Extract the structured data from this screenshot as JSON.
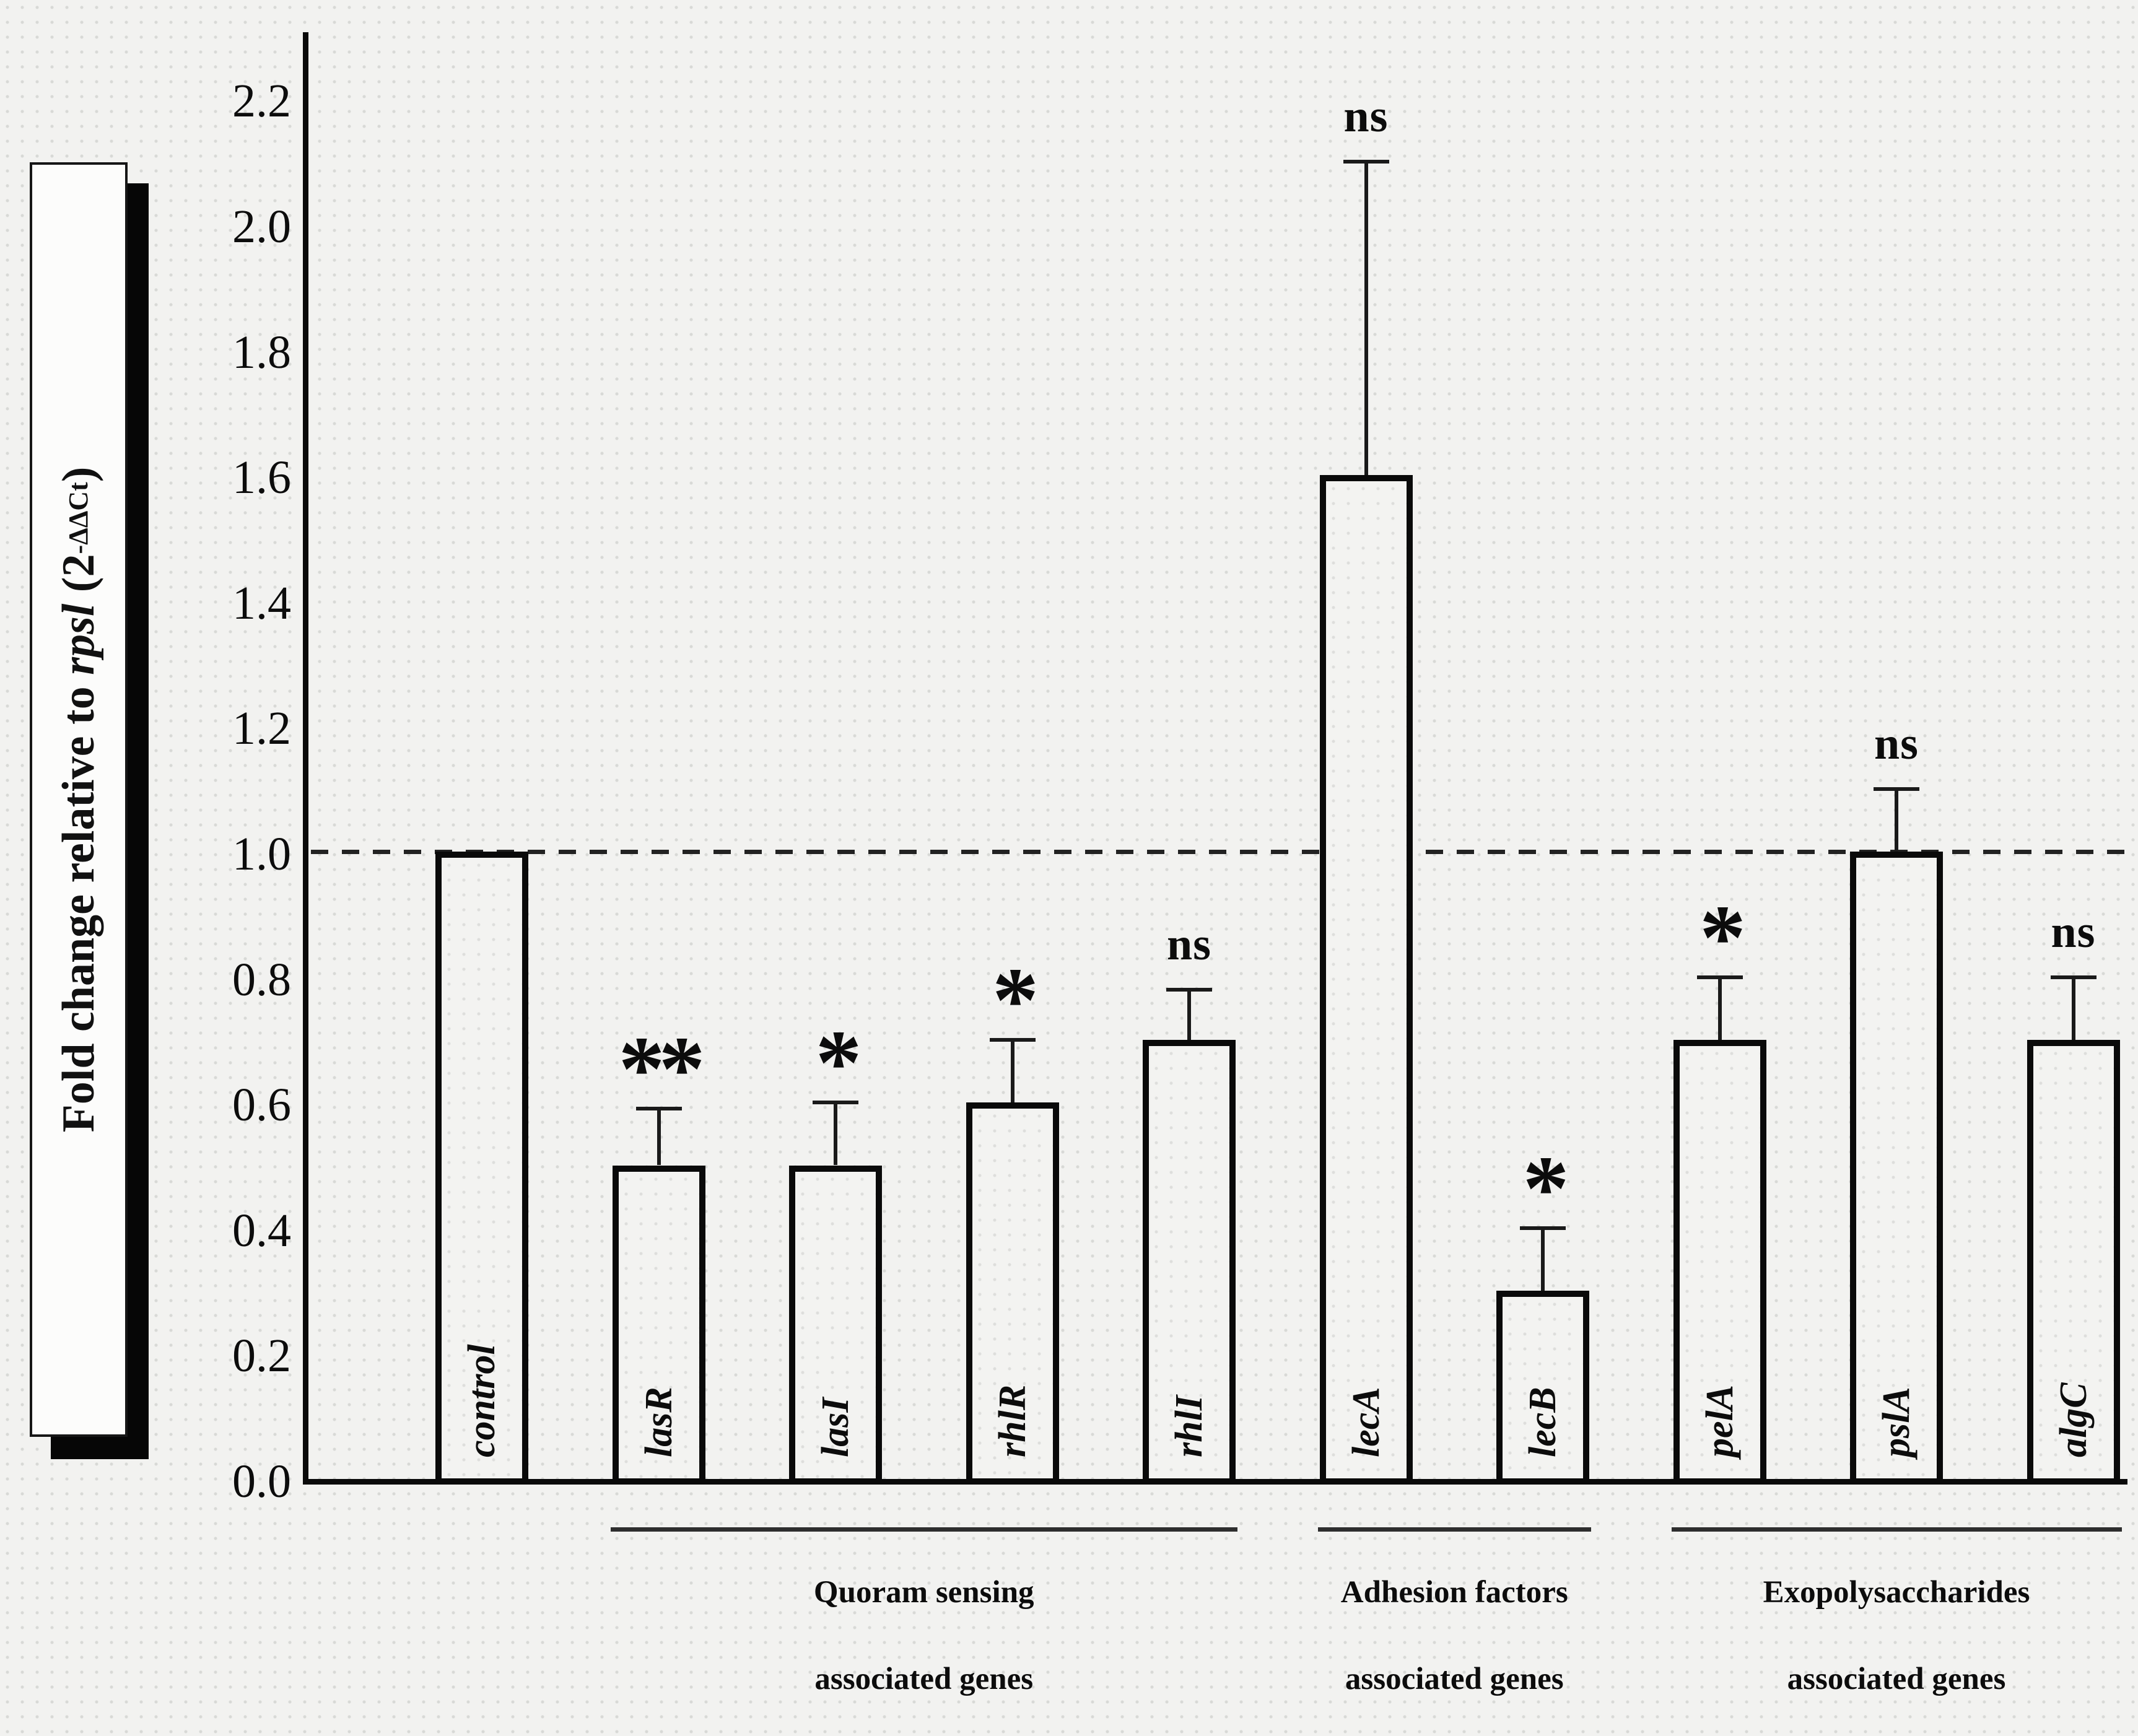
{
  "figure": {
    "background": "#f2f2f0",
    "ink": "#0a0a0a"
  },
  "y_axis": {
    "label_pre": "Fold change relative to ",
    "label_gene": "rpsl",
    "label_open": " (2",
    "label_sup": "-ΔΔCt",
    "label_close": ")",
    "tick_labels": [
      "0.0",
      "0.2",
      "0.4",
      "0.6",
      "0.8",
      "1.0",
      "1.2",
      "1.4",
      "1.6",
      "1.8",
      "2.0",
      "2.2"
    ]
  },
  "chart_data": {
    "type": "bar",
    "title": "",
    "xlabel": "",
    "ylabel": "Fold change relative to rpsl (2^-ΔΔCt)",
    "ylim": [
      0.0,
      2.3
    ],
    "ytick_step": 0.2,
    "reference_line": 1.0,
    "grid": false,
    "legend": "none",
    "bar_fill": "#f3f3f1",
    "bar_border": "#0a0a0a",
    "categories": [
      "control",
      "lasR",
      "lasI",
      "rhlR",
      "rhlI",
      "lecA",
      "lecB",
      "pelA",
      "pslA",
      "algC"
    ],
    "values": [
      1.0,
      0.5,
      0.5,
      0.6,
      0.7,
      1.6,
      0.3,
      0.7,
      1.0,
      0.7
    ],
    "errors_plus": [
      0,
      0.09,
      0.1,
      0.1,
      0.08,
      0.5,
      0.1,
      0.1,
      0.1,
      0.1
    ],
    "significance": [
      "",
      "**",
      "*",
      "*",
      "ns",
      "ns",
      "*",
      "*",
      "ns",
      "ns"
    ],
    "groups": [
      {
        "line1": "Quoram sensing",
        "line2": "associated genes",
        "start_index": 1,
        "end_index": 4
      },
      {
        "line1": "Adhesion factors",
        "line2": "associated genes",
        "start_index": 5,
        "end_index": 6
      },
      {
        "line1": "Exopolysaccharides",
        "line2": "associated genes",
        "start_index": 7,
        "end_index": 9
      }
    ]
  }
}
